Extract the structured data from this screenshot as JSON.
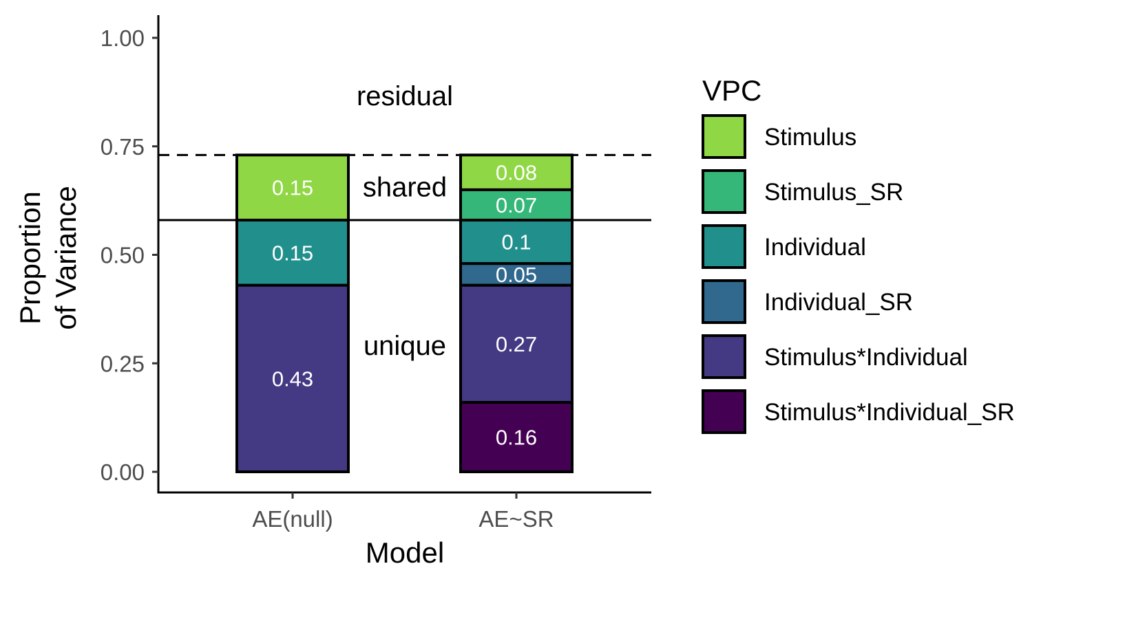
{
  "chart_data": {
    "type": "bar",
    "stacked": true,
    "xlabel": "Model",
    "ylabel": [
      "Proportion",
      "of Variance"
    ],
    "ylim": [
      0,
      1.0
    ],
    "yticks": [
      "0.00",
      "0.25",
      "0.50",
      "0.75",
      "1.00"
    ],
    "ytick_values": [
      0,
      0.25,
      0.5,
      0.75,
      1.0
    ],
    "categories": [
      "AE(null)",
      "AE~SR"
    ],
    "legend_title": "VPC",
    "legend_position": "right",
    "series": [
      {
        "name": "Stimulus*Individual_SR",
        "color": "#440154",
        "values": [
          0,
          0.16
        ],
        "labels": [
          "",
          "0.16"
        ]
      },
      {
        "name": "Stimulus*Individual",
        "color": "#443a83",
        "values": [
          0.43,
          0.27
        ],
        "labels": [
          "0.43",
          "0.27"
        ]
      },
      {
        "name": "Individual_SR",
        "color": "#31688e",
        "values": [
          0,
          0.05
        ],
        "labels": [
          "",
          "0.05"
        ]
      },
      {
        "name": "Individual",
        "color": "#21908d",
        "values": [
          0.15,
          0.1
        ],
        "labels": [
          "0.15",
          "0.1"
        ]
      },
      {
        "name": "Stimulus_SR",
        "color": "#35b779",
        "values": [
          0,
          0.07
        ],
        "labels": [
          "",
          "0.07"
        ]
      },
      {
        "name": "Stimulus",
        "color": "#8fd744",
        "values": [
          0.15,
          0.08
        ],
        "labels": [
          "0.15",
          "0.08"
        ]
      }
    ],
    "legend_order": [
      "Stimulus",
      "Stimulus_SR",
      "Individual",
      "Individual_SR",
      "Stimulus*Individual",
      "Stimulus*Individual_SR"
    ],
    "reference_lines": [
      {
        "y": 0.73,
        "style": "dashed"
      },
      {
        "y": 0.58,
        "style": "solid"
      }
    ],
    "annotations": [
      {
        "text": "residual",
        "y": 0.865
      },
      {
        "text": "shared",
        "y": 0.655
      },
      {
        "text": "unique",
        "y": 0.29
      }
    ],
    "grid": false
  }
}
